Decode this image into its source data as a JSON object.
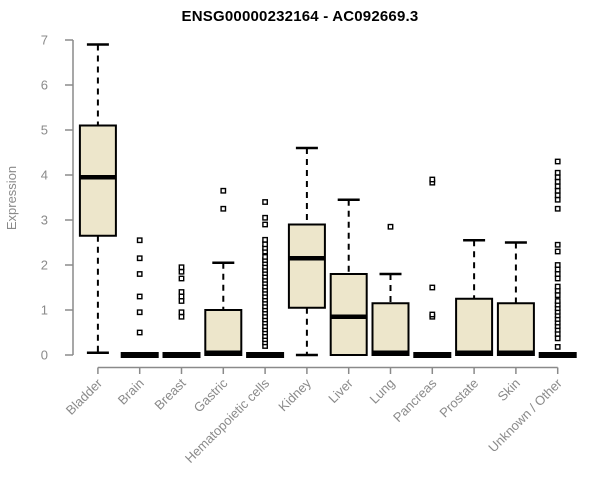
{
  "chart_data": {
    "type": "boxplot",
    "title": "ENSG00000232164 - AC092669.3",
    "xlabel": "",
    "ylabel": "Expression",
    "ylim": [
      0,
      7
    ],
    "yticks": [
      0,
      1,
      2,
      3,
      4,
      5,
      6,
      7
    ],
    "grid": false,
    "legend": "none",
    "categories": [
      "Bladder",
      "Brain",
      "Breast",
      "Gastric",
      "Hematopoietic cells",
      "Kidney",
      "Liver",
      "Lung",
      "Pancreas",
      "Prostate",
      "Skin",
      "Unknown / Other"
    ],
    "series": [
      {
        "category": "Bladder",
        "whisker_low": 0.05,
        "q1": 2.65,
        "median": 3.95,
        "q3": 5.1,
        "whisker_high": 6.9,
        "outliers": []
      },
      {
        "category": "Brain",
        "whisker_low": 0,
        "q1": 0,
        "median": 0,
        "q3": 0,
        "whisker_high": 0,
        "outliers": [
          0.5,
          0.95,
          1.3,
          1.8,
          2.15,
          2.55
        ]
      },
      {
        "category": "Breast",
        "whisker_low": 0,
        "q1": 0,
        "median": 0,
        "q3": 0,
        "whisker_high": 0,
        "outliers": [
          0.85,
          0.95,
          1.2,
          1.3,
          1.4,
          1.7,
          1.85,
          1.95
        ]
      },
      {
        "category": "Gastric",
        "whisker_low": 0,
        "q1": 0,
        "median": 0.05,
        "q3": 1.0,
        "whisker_high": 2.05,
        "outliers": [
          3.25,
          3.65
        ]
      },
      {
        "category": "Hematopoietic cells",
        "whisker_low": 0,
        "q1": 0,
        "median": 0,
        "q3": 0,
        "whisker_high": 0,
        "outliers": [
          0.2,
          0.28,
          0.35,
          0.42,
          0.5,
          0.57,
          0.64,
          0.72,
          0.79,
          0.86,
          0.94,
          1.01,
          1.08,
          1.16,
          1.23,
          1.3,
          1.38,
          1.45,
          1.52,
          1.6,
          1.67,
          1.74,
          1.82,
          1.89,
          1.96,
          2.04,
          2.11,
          2.18,
          2.3,
          2.38,
          2.46,
          2.56,
          2.9,
          3.05,
          3.4
        ]
      },
      {
        "category": "Kidney",
        "whisker_low": 0,
        "q1": 1.05,
        "median": 2.15,
        "q3": 2.9,
        "whisker_high": 4.6,
        "outliers": []
      },
      {
        "category": "Liver",
        "whisker_low": 0,
        "q1": 0,
        "median": 0.85,
        "q3": 1.8,
        "whisker_high": 3.45,
        "outliers": []
      },
      {
        "category": "Lung",
        "whisker_low": 0,
        "q1": 0,
        "median": 0.05,
        "q3": 1.15,
        "whisker_high": 1.8,
        "outliers": [
          2.85
        ]
      },
      {
        "category": "Pancreas",
        "whisker_low": 0,
        "q1": 0,
        "median": 0,
        "q3": 0,
        "whisker_high": 0,
        "outliers": [
          0.85,
          0.9,
          1.5,
          3.83,
          3.9
        ]
      },
      {
        "category": "Prostate",
        "whisker_low": 0,
        "q1": 0,
        "median": 0.05,
        "q3": 1.25,
        "whisker_high": 2.55,
        "outliers": []
      },
      {
        "category": "Skin",
        "whisker_low": 0,
        "q1": 0,
        "median": 0.05,
        "q3": 1.15,
        "whisker_high": 2.5,
        "outliers": []
      },
      {
        "category": "Unknown / Other",
        "whisker_low": 0,
        "q1": 0,
        "median": 0,
        "q3": 0,
        "whisker_high": 0,
        "outliers": [
          0.18,
          0.37,
          0.47,
          0.56,
          0.64,
          0.72,
          0.8,
          0.88,
          0.96,
          1.04,
          1.12,
          1.2,
          1.33,
          1.43,
          1.52,
          1.7,
          1.8,
          1.9,
          2.0,
          2.3,
          2.45,
          3.25,
          3.45,
          3.55,
          3.65,
          3.75,
          3.85,
          3.95,
          4.05,
          4.3
        ]
      }
    ],
    "colors": {
      "box_fill": "#EDE6CB",
      "box_border": "#000000",
      "median": "#000000",
      "whisker": "#000000",
      "outlier_fill": "#FFFFFF",
      "outlier_border": "#000000",
      "axis": "#8A8A8A",
      "tick_label": "#8A8A8A",
      "title": "#000000",
      "background": "#FFFFFF"
    }
  }
}
